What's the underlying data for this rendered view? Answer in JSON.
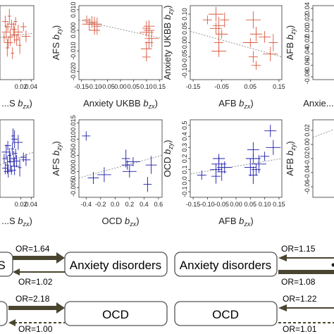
{
  "chart_data": [
    {
      "type": "scatter",
      "id": "p1",
      "xlabel": "...S (b_zx)",
      "xticks": [
        "0.02",
        "0.04"
      ],
      "color": "#d9573f",
      "xlim": [
        -0.02,
        0.045
      ],
      "ylim": [
        -0.09,
        0.05
      ],
      "points": [
        [
          -0.012,
          -0.01
        ],
        [
          -0.01,
          0.02
        ],
        [
          -0.008,
          0.0
        ],
        [
          -0.006,
          -0.03
        ],
        [
          -0.005,
          0.01
        ],
        [
          -0.004,
          -0.02
        ],
        [
          -0.002,
          0.03
        ],
        [
          0.0,
          -0.01
        ],
        [
          0.002,
          0.015
        ],
        [
          0.004,
          -0.04
        ],
        [
          0.006,
          0.005
        ],
        [
          0.008,
          -0.005
        ],
        [
          0.01,
          0.02
        ],
        [
          0.012,
          -0.015
        ],
        [
          0.015,
          0.0
        ],
        [
          0.018,
          -0.025
        ],
        [
          0.025,
          0.01
        ],
        [
          0.03,
          -0.008
        ]
      ],
      "fit": [
        [
          -0.02,
          -0.01
        ],
        [
          0.045,
          -0.002
        ]
      ]
    },
    {
      "type": "scatter",
      "id": "p2",
      "xlabel": "Anxiety UKBB (b_zx)",
      "ylabel": "AFS (b_zy)",
      "xticks": [
        "-0.15",
        "-0.10",
        "-0.05",
        "0.00",
        "0.05",
        "0.10",
        "0.15"
      ],
      "yticks": [
        "-0.020",
        "-0.010",
        "0.000",
        "0.010"
      ],
      "color": "#d9573f",
      "xlim": [
        -0.16,
        0.16
      ],
      "ylim": [
        -0.024,
        0.012
      ],
      "points": [
        [
          -0.13,
          0.005
        ],
        [
          -0.11,
          0.004
        ],
        [
          -0.1,
          0.003
        ],
        [
          -0.09,
          0.002
        ],
        [
          -0.1,
          0.0
        ],
        [
          -0.12,
          0.003
        ],
        [
          0.1,
          0.001
        ],
        [
          0.11,
          0.0
        ],
        [
          0.1,
          -0.001
        ],
        [
          0.11,
          -0.006
        ],
        [
          0.1,
          -0.009
        ],
        [
          0.12,
          -0.004
        ],
        [
          0.1,
          -0.013
        ],
        [
          0.11,
          0.002
        ]
      ],
      "fit": [
        [
          -0.16,
          0.005
        ],
        [
          0.16,
          -0.004
        ]
      ]
    },
    {
      "type": "scatter",
      "id": "p3",
      "xlabel": "AFB (b_zx)",
      "ylabel": "Anxiety UKBB (b_zy)",
      "xticks": [
        "-0.15",
        "-0.05",
        "0.05",
        "0.15"
      ],
      "yticks": [
        "-0.10",
        "-0.05",
        "0.00",
        "0.05",
        "0.10"
      ],
      "color": "#d9573f",
      "xlim": [
        -0.16,
        0.16
      ],
      "ylim": [
        -0.13,
        0.13
      ],
      "points": [
        [
          -0.1,
          0.08
        ],
        [
          -0.07,
          0.05
        ],
        [
          -0.07,
          0.1
        ],
        [
          -0.06,
          0.0
        ],
        [
          -0.05,
          0.03
        ],
        [
          -0.06,
          -0.03
        ],
        [
          -0.04,
          0.08
        ],
        [
          -0.06,
          0.06
        ],
        [
          0.05,
          0.0
        ],
        [
          0.06,
          -0.05
        ],
        [
          0.07,
          0.03
        ],
        [
          0.06,
          0.08
        ],
        [
          0.07,
          -0.08
        ],
        [
          0.1,
          0.02
        ],
        [
          0.12,
          -0.04
        ],
        [
          0.13,
          0.0
        ]
      ],
      "fit": [
        [
          -0.16,
          0.04
        ],
        [
          0.16,
          -0.05
        ]
      ]
    },
    {
      "type": "scatter",
      "id": "p4",
      "xlabel": "Anxie... (b_zx)",
      "ylabel": "AFB (b_zy)",
      "yticks": [
        "-0.08",
        "-0.06",
        "-0.04",
        "-0.02",
        "0.00",
        "0.02",
        "0.04"
      ],
      "color": "#d9573f",
      "xlim": [
        -0.16,
        0.16
      ],
      "ylim": [
        -0.085,
        0.045
      ],
      "points": [],
      "fit": []
    },
    {
      "type": "scatter",
      "id": "p5",
      "xlabel": "...S (b_zx)",
      "xticks": [
        "0.02",
        "0.04"
      ],
      "color": "#1a1aa8",
      "xlim": [
        -0.02,
        0.045
      ],
      "ylim": [
        -0.5,
        0.7
      ],
      "points": [
        [
          -0.012,
          0.1
        ],
        [
          -0.01,
          -0.05
        ],
        [
          -0.008,
          0.2
        ],
        [
          -0.006,
          0.0
        ],
        [
          -0.005,
          0.3
        ],
        [
          -0.004,
          -0.1
        ],
        [
          -0.002,
          0.15
        ],
        [
          0.0,
          0.05
        ],
        [
          0.002,
          -0.08
        ],
        [
          0.004,
          0.25
        ],
        [
          0.006,
          0.1
        ],
        [
          0.008,
          -0.02
        ],
        [
          0.01,
          0.18
        ],
        [
          0.012,
          0.06
        ],
        [
          0.015,
          0.35
        ],
        [
          0.018,
          -0.04
        ],
        [
          0.025,
          0.12
        ],
        [
          0.03,
          0.08
        ],
        [
          0.005,
          0.45
        ],
        [
          0.008,
          0.4
        ]
      ],
      "fit": [
        [
          -0.02,
          0.0
        ],
        [
          0.045,
          0.2
        ]
      ]
    },
    {
      "type": "scatter",
      "id": "p6",
      "xlabel": "OCD (b_zx)",
      "ylabel": "AFS (b_zy)",
      "xticks": [
        "-0.4",
        "-0.2",
        "0.0",
        "0.2",
        "0.4",
        "0.6"
      ],
      "yticks": [
        "-0.005",
        "0.000",
        "0.005",
        "0.010",
        "0.015"
      ],
      "color": "#1a1aa8",
      "xlim": [
        -0.5,
        0.65
      ],
      "ylim": [
        -0.008,
        0.016
      ],
      "points": [
        [
          -0.4,
          0.011
        ],
        [
          -0.3,
          -0.002
        ],
        [
          -0.15,
          -0.001
        ],
        [
          0.15,
          0.004
        ],
        [
          0.17,
          0.002
        ],
        [
          0.2,
          0.0
        ],
        [
          0.45,
          -0.004
        ],
        [
          0.5,
          0.002
        ],
        [
          0.25,
          0.003
        ]
      ],
      "fit": [
        [
          -0.5,
          -0.002
        ],
        [
          0.65,
          0.005
        ]
      ]
    },
    {
      "type": "scatter",
      "id": "p7",
      "xlabel": "AFB (b_zx)",
      "ylabel": "OCD (b_zy)",
      "xticks": [
        "-0.15",
        "-0.10",
        "-0.05",
        "0.00",
        "0.05",
        "0.10",
        "0.15"
      ],
      "yticks": [
        "-0.1",
        "0.0",
        "0.1",
        "0.2",
        "0.3",
        "0.4",
        "0.5"
      ],
      "color": "#1a1aa8",
      "xlim": [
        -0.16,
        0.16
      ],
      "ylim": [
        -0.15,
        0.55
      ],
      "points": [
        [
          -0.12,
          0.05
        ],
        [
          -0.07,
          0.1
        ],
        [
          -0.06,
          0.15
        ],
        [
          -0.05,
          0.08
        ],
        [
          -0.06,
          0.2
        ],
        [
          -0.04,
          0.12
        ],
        [
          -0.07,
          0.04
        ],
        [
          0.05,
          0.12
        ],
        [
          0.06,
          0.2
        ],
        [
          0.07,
          0.1
        ],
        [
          0.06,
          0.28
        ],
        [
          0.08,
          0.15
        ],
        [
          0.1,
          0.22
        ],
        [
          0.12,
          0.45
        ],
        [
          0.13,
          0.3
        ],
        [
          0.06,
          0.05
        ]
      ],
      "fit": [
        [
          -0.16,
          0.06
        ],
        [
          0.16,
          0.2
        ]
      ]
    },
    {
      "type": "scatter",
      "id": "p8",
      "xlabel": "",
      "ylabel": "AFB (b_zy)",
      "yticks": [
        "-0.06",
        "-0.04",
        "-0.02",
        "0.00",
        "0.02"
      ],
      "color": "#1a1aa8",
      "xlim": [
        -0.16,
        0.16
      ],
      "ylim": [
        -0.075,
        0.035
      ],
      "points": [],
      "fit": [
        [
          -0.16,
          0.01
        ],
        [
          0.16,
          0.025
        ]
      ]
    }
  ],
  "diagram": {
    "row1": {
      "left_box_partial": "S",
      "right_box": "Anxiety disorders",
      "or_top": "OR=1.64",
      "or_bottom": "OR=1.02",
      "box2": "Anxiety disorders",
      "or_top2": "OR=1.15",
      "or_bottom2": "OR=1.08"
    },
    "row2": {
      "right_box": "OCD",
      "or_top": "OR=2.18",
      "or_bottom": "OR=1.00",
      "box2": "OCD",
      "or_top2": "OR=1.22",
      "or_bottom2": "OR=1.01"
    },
    "arrow_color": "#4a4530"
  }
}
